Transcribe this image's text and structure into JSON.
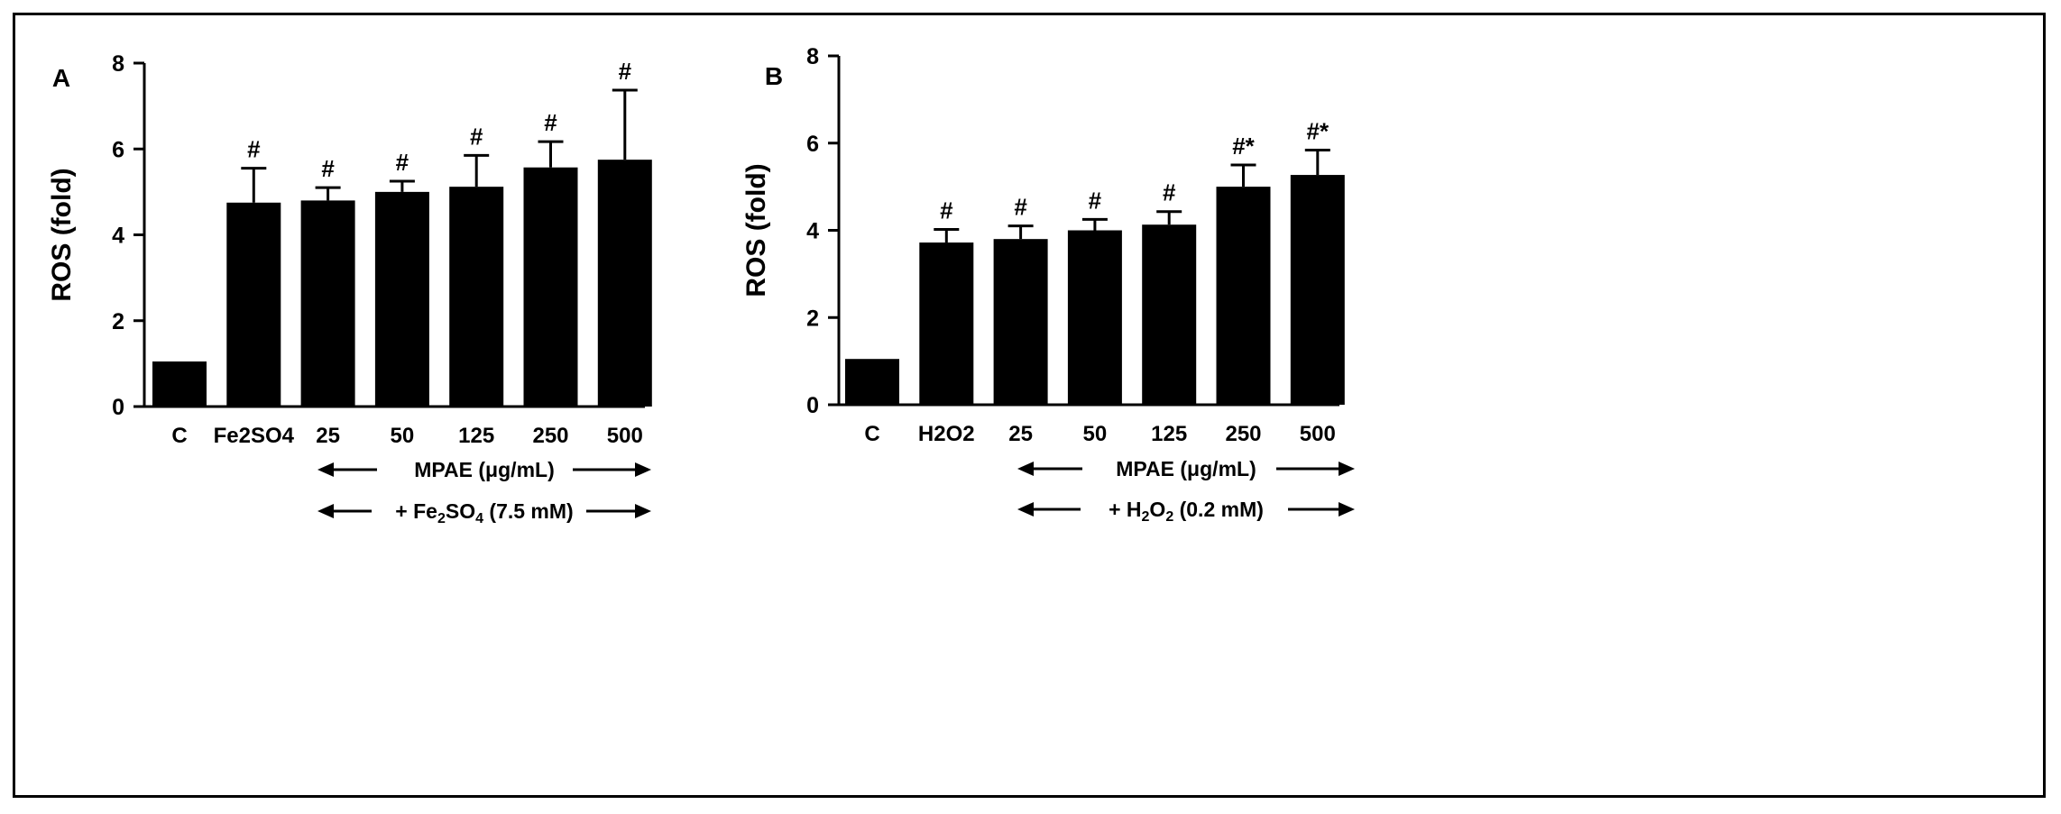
{
  "charts": [
    {
      "panel_label": "A",
      "chart_data": {
        "type": "bar",
        "categories": [
          "C",
          "Fe2SO4",
          "25",
          "50",
          "125",
          "250",
          "500"
        ],
        "values": [
          1.05,
          4.75,
          4.8,
          5.0,
          5.12,
          5.57,
          5.75
        ],
        "errors": [
          0.0,
          0.8,
          0.3,
          0.25,
          0.73,
          0.6,
          1.62
        ],
        "annotations": [
          "",
          "#",
          "#",
          "#",
          "#",
          "#",
          "#"
        ],
        "ylabel": "ROS (fold)",
        "xlabel": "",
        "ylim": [
          0,
          8
        ],
        "yticks": [
          0,
          2,
          4,
          6,
          8
        ],
        "grid": false,
        "bar_color": "#000000",
        "category_labels": [
          {
            "main": "C"
          },
          {
            "main": "Fe",
            "sub": "2",
            "rest": "SO",
            "sub2": "4"
          },
          {
            "main": "25"
          },
          {
            "main": "50"
          },
          {
            "main": "125"
          },
          {
            "main": "250"
          },
          {
            "main": "500"
          }
        ],
        "bracket_rows": [
          {
            "text": "MPAE (μg/mL)"
          },
          {
            "prefix": "+ Fe",
            "sub": "2",
            "mid": "SO",
            "sub2": "4",
            "suffix": " (7.5 mM)"
          }
        ]
      }
    },
    {
      "panel_label": "B",
      "chart_data": {
        "type": "bar",
        "categories": [
          "C",
          "H2O2",
          "25",
          "50",
          "125",
          "250",
          "500"
        ],
        "values": [
          1.05,
          3.72,
          3.8,
          4.0,
          4.13,
          5.0,
          5.27
        ],
        "errors": [
          0.0,
          0.3,
          0.3,
          0.25,
          0.3,
          0.5,
          0.57
        ],
        "annotations": [
          "",
          "#",
          "#",
          "#",
          "#",
          "#*",
          "#*"
        ],
        "ylabel": "ROS (fold)",
        "xlabel": "",
        "ylim": [
          0,
          8
        ],
        "yticks": [
          0,
          2,
          4,
          6,
          8
        ],
        "grid": false,
        "bar_color": "#000000",
        "category_labels": [
          {
            "main": "C"
          },
          {
            "main": "H",
            "sub": "2",
            "rest": "O",
            "sub2": "2"
          },
          {
            "main": "25"
          },
          {
            "main": "50"
          },
          {
            "main": "125"
          },
          {
            "main": "250"
          },
          {
            "main": "500"
          }
        ],
        "bracket_rows": [
          {
            "text": "MPAE (μg/mL)"
          },
          {
            "prefix": "+ H",
            "sub": "2",
            "mid": "O",
            "sub2": "2",
            "suffix": " (0.2 mM)"
          }
        ]
      }
    }
  ]
}
